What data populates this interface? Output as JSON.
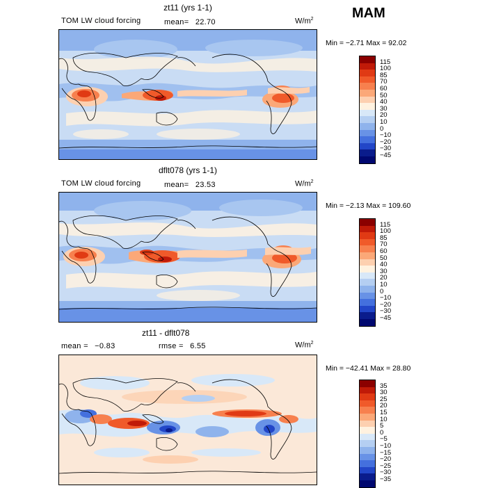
{
  "season": "MAM",
  "chart_data": [
    {
      "type": "heatmap",
      "title": "zt11 (yrs 1-1)",
      "variable": "TOM LW cloud forcing",
      "mean_label": "mean=",
      "mean": "22.70",
      "units_base": "W/m",
      "units_exp": "2",
      "minmax": "Min =  −2.71  Max =   92.02",
      "min": -2.71,
      "max": 92.02,
      "colorbar_levels": [
        "115",
        "100",
        "85",
        "70",
        "60",
        "50",
        "40",
        "30",
        "20",
        "10",
        "0",
        "−10",
        "−20",
        "−30",
        "−45"
      ],
      "colorbar_colors": [
        "#8b0000",
        "#c01a08",
        "#e03a14",
        "#f05a2a",
        "#f7804e",
        "#fba878",
        "#fdd0b0",
        "#fff2e0",
        "#d8e8f8",
        "#b5cff2",
        "#8fb3ec",
        "#6892e6",
        "#4470de",
        "#2246c8",
        "#0a1c8c",
        "#000870"
      ]
    },
    {
      "type": "heatmap",
      "title": "dflt078 (yrs 1-1)",
      "variable": "TOM LW cloud forcing",
      "mean_label": "mean=",
      "mean": "23.53",
      "units_base": "W/m",
      "units_exp": "2",
      "minmax": "Min =  −2.13  Max =  109.60",
      "min": -2.13,
      "max": 109.6,
      "colorbar_levels": [
        "115",
        "100",
        "85",
        "70",
        "60",
        "50",
        "40",
        "30",
        "20",
        "10",
        "0",
        "−10",
        "−20",
        "−30",
        "−45"
      ],
      "colorbar_colors": [
        "#8b0000",
        "#c01a08",
        "#e03a14",
        "#f05a2a",
        "#f7804e",
        "#fba878",
        "#fdd0b0",
        "#fff2e0",
        "#d8e8f8",
        "#b5cff2",
        "#8fb3ec",
        "#6892e6",
        "#4470de",
        "#2246c8",
        "#0a1c8c",
        "#000870"
      ]
    },
    {
      "type": "heatmap",
      "title": "zt11 - dflt078",
      "mean_label": "mean =",
      "mean": "−0.83",
      "rmse_label": "rmse =",
      "rmse": "6.55",
      "units_base": "W/m",
      "units_exp": "2",
      "minmax": "Min = −42.41  Max =   28.80",
      "min": -42.41,
      "max": 28.8,
      "colorbar_levels": [
        "35",
        "30",
        "25",
        "20",
        "15",
        "10",
        "5",
        "0",
        "−5",
        "−10",
        "−15",
        "−20",
        "−25",
        "−30",
        "−35"
      ],
      "colorbar_colors": [
        "#8b0000",
        "#c01a08",
        "#e03a14",
        "#f05a2a",
        "#f7804e",
        "#fba878",
        "#fdd0b0",
        "#fff2e0",
        "#d8e8f8",
        "#b5cff2",
        "#8fb3ec",
        "#6892e6",
        "#4470de",
        "#2246c8",
        "#0a1c8c",
        "#000870"
      ]
    }
  ]
}
